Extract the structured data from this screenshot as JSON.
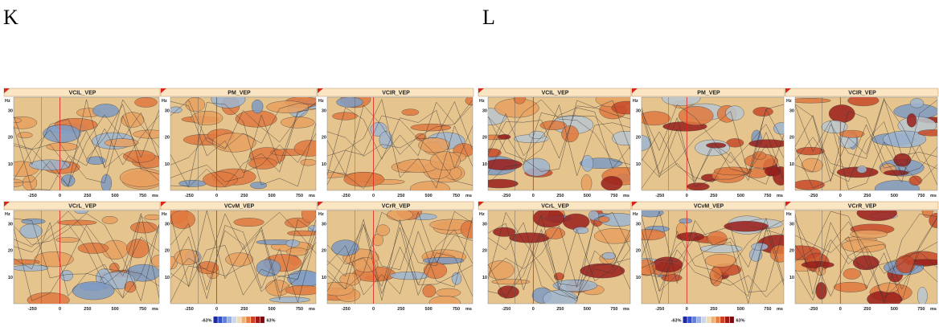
{
  "panels": [
    {
      "label": "K",
      "plots": [
        {
          "title": "VCIL_VEP"
        },
        {
          "title": "PM_VEP"
        },
        {
          "title": "VCIR_VEP"
        },
        {
          "title": "VCrL_VEP"
        },
        {
          "title": "VCvM_VEP"
        },
        {
          "title": "VCrR_VEP"
        }
      ],
      "colorbar": {
        "min": "-63%",
        "max": "63%"
      }
    },
    {
      "label": "L",
      "plots": [
        {
          "title": "VCIL_VEP"
        },
        {
          "title": "PM_VEP"
        },
        {
          "title": "VCIR_VEP"
        },
        {
          "title": "VCrL_VEP"
        },
        {
          "title": "VCvM_VEP"
        },
        {
          "title": "VCrR_VEP"
        }
      ],
      "colorbar": {
        "min": "-63%",
        "max": "63%"
      }
    }
  ],
  "axes": {
    "y_unit": "Hz",
    "y_ticks": [
      "30",
      "20",
      "10"
    ],
    "x_ticks": [
      "-250",
      "0",
      "250",
      "500",
      "750"
    ],
    "x_unit": "ms"
  }
}
